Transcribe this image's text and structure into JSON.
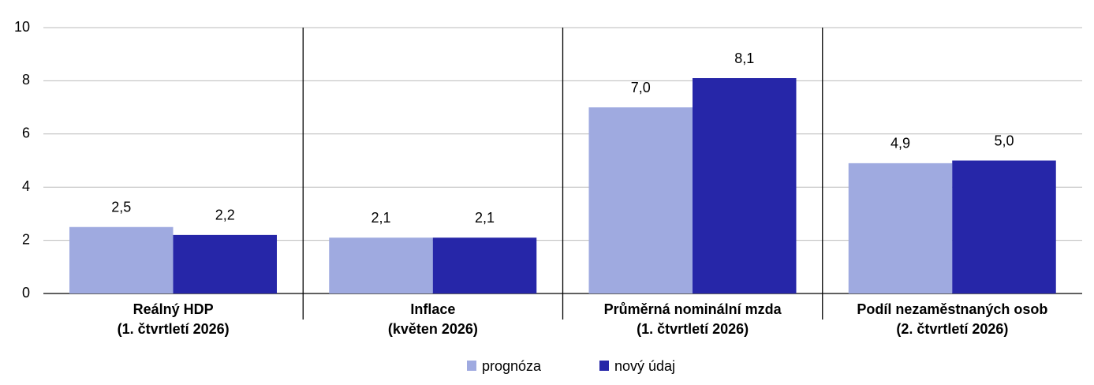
{
  "chart_data": {
    "type": "bar",
    "categories": [
      [
        "Reálný HDP",
        "(1. čtvrtletí 2026)"
      ],
      [
        "Inflace",
        "(květen 2026)"
      ],
      [
        "Průměrná nominální mzda",
        "(1. čtvrtletí 2026)"
      ],
      [
        "Podíl nezaměstnaných osob",
        "(2. čtvrtletí 2026)"
      ]
    ],
    "series": [
      {
        "name": "prognóza",
        "color": "#9faae0",
        "values": [
          2.5,
          2.1,
          7.0,
          4.9
        ],
        "value_labels": [
          "2,5",
          "2,1",
          "7,0",
          "4,9"
        ]
      },
      {
        "name": "nový údaj",
        "color": "#2626a8",
        "values": [
          2.2,
          2.1,
          8.1,
          5.0
        ],
        "value_labels": [
          "2,2",
          "2,1",
          "8,1",
          "5,0"
        ]
      }
    ],
    "ylim": [
      0,
      10
    ],
    "yticks": [
      0,
      2,
      4,
      6,
      8,
      10
    ],
    "grid": true
  }
}
